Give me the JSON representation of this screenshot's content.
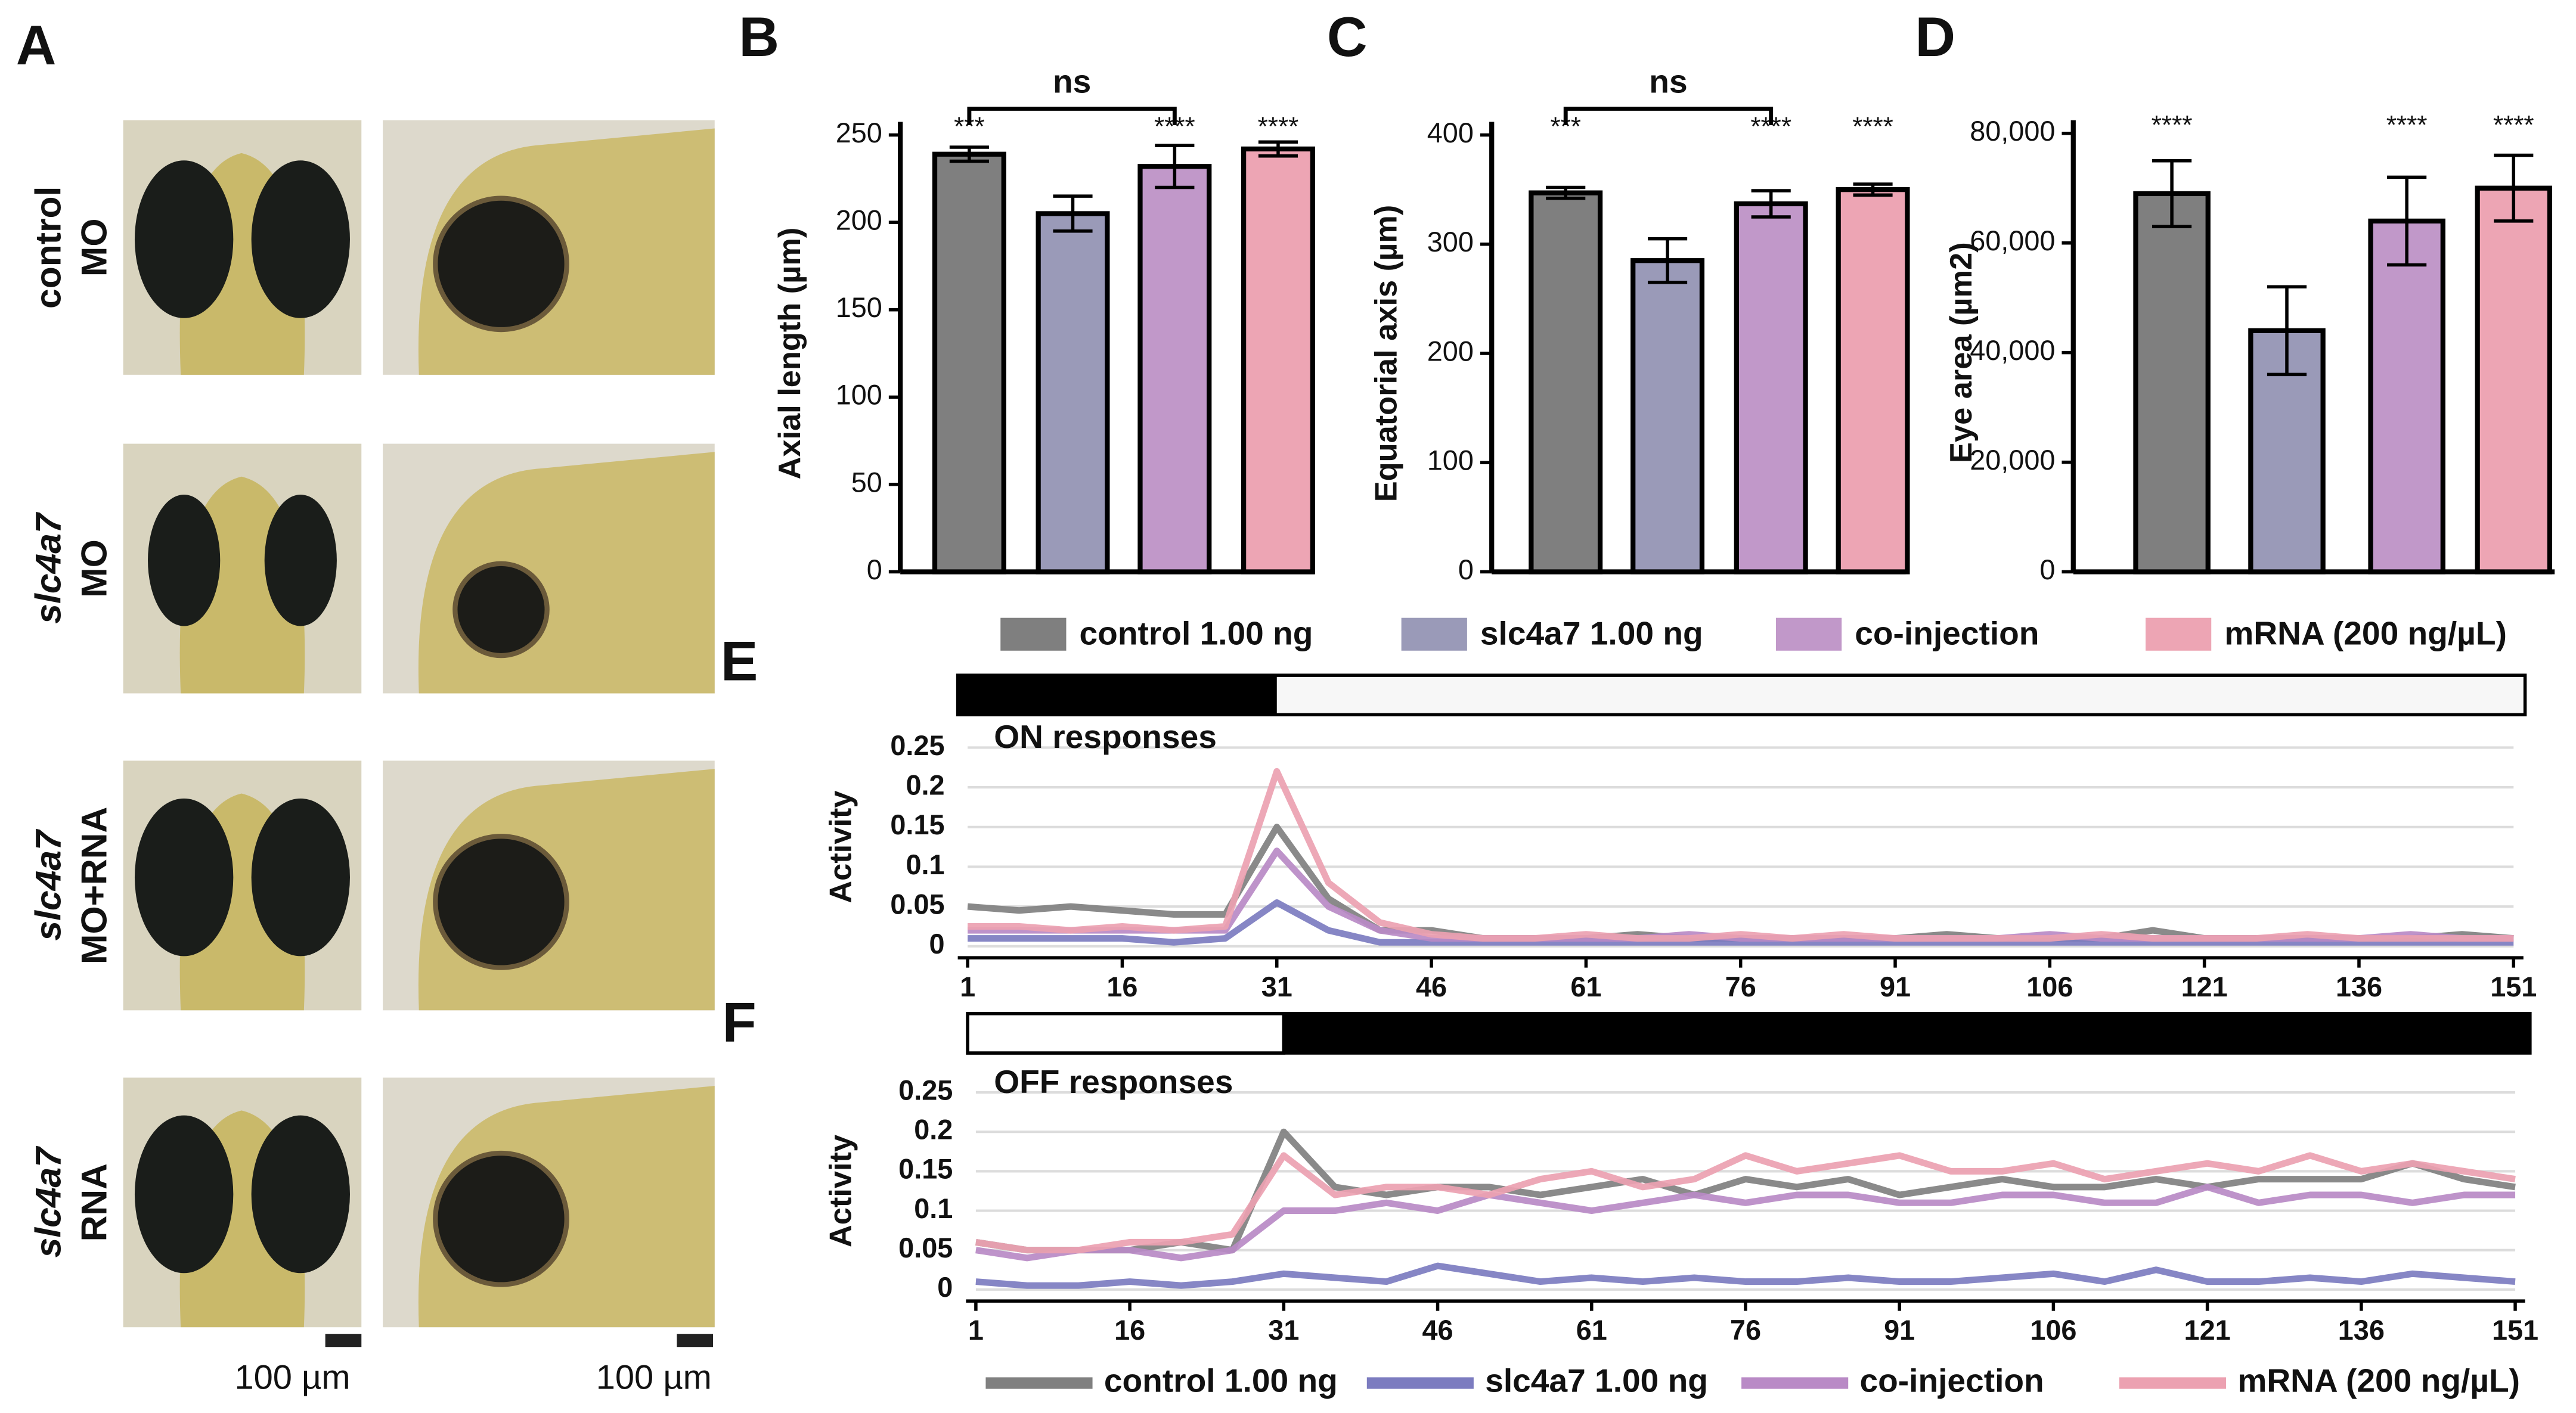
{
  "panel_labels": [
    "A",
    "B",
    "C",
    "D",
    "E",
    "F"
  ],
  "panel_a": {
    "rows": [
      {
        "gene": "control",
        "label": "MO"
      },
      {
        "gene": "slc4a7",
        "label": "MO"
      },
      {
        "gene": "slc4a7",
        "label": "MO+RNA"
      },
      {
        "gene": "slc4a7",
        "label": "RNA"
      }
    ],
    "scale_bar_labels": [
      "100 µm",
      "100 µm"
    ]
  },
  "legend": [
    {
      "name": "control 1.00 ng",
      "color": "#7f7f7f"
    },
    {
      "name": "slc4a7 1.00 ng",
      "color": "#9a9ab8"
    },
    {
      "name": "co-injection",
      "color": "#c198c9"
    },
    {
      "name": "mRNA (200 ng/µL)",
      "color": "#eda5b4"
    }
  ],
  "chart_data": [
    {
      "type": "bar",
      "ylabel": "Axial length (µm)",
      "values": [
        239,
        205,
        232,
        242
      ],
      "errors": [
        4,
        10,
        12,
        4
      ],
      "significance": [
        "***",
        null,
        "****",
        "****"
      ],
      "comparison_label": "ns",
      "ylim": [
        0,
        250
      ],
      "yticks": [
        0,
        50,
        100,
        150,
        200,
        250
      ]
    },
    {
      "type": "bar",
      "ylabel": "Equatorial axis (µm)",
      "values": [
        347,
        285,
        337,
        350
      ],
      "errors": [
        5,
        20,
        12,
        5
      ],
      "significance": [
        "***",
        null,
        "****",
        "****"
      ],
      "comparison_label": "ns",
      "ylim": [
        0,
        400
      ],
      "yticks": [
        0,
        100,
        200,
        300,
        400
      ]
    },
    {
      "type": "bar",
      "ylabel": "Eye area (µm2)",
      "values": [
        69000,
        44000,
        64000,
        70000
      ],
      "errors": [
        6000,
        8000,
        8000,
        6000
      ],
      "significance": [
        "****",
        null,
        "****",
        "****"
      ],
      "ylim": [
        0,
        80000
      ],
      "yticks": [
        0,
        {
          "value": 20000,
          "label": "20,000"
        },
        {
          "value": 40000,
          "label": "40,000"
        },
        {
          "value": 60000,
          "label": "60,000"
        },
        {
          "value": 80000,
          "label": "80,000"
        }
      ]
    },
    {
      "type": "line",
      "title": "ON responses",
      "ylabel": "Activity",
      "x": [
        1,
        6,
        11,
        16,
        21,
        26,
        31,
        36,
        41,
        46,
        51,
        56,
        61,
        66,
        71,
        76,
        81,
        86,
        91,
        96,
        101,
        106,
        111,
        116,
        121,
        126,
        131,
        136,
        141,
        146,
        151
      ],
      "xlim": [
        1,
        151
      ],
      "xticks": [
        1,
        16,
        31,
        46,
        61,
        76,
        91,
        106,
        121,
        136,
        151
      ],
      "ylim": [
        0,
        0.25
      ],
      "yticks": [
        0,
        0.05,
        0.1,
        0.15,
        0.2,
        0.25
      ],
      "grid": true,
      "series": [
        {
          "color": "#808080",
          "values": [
            0.05,
            0.045,
            0.05,
            0.045,
            0.04,
            0.04,
            0.15,
            0.06,
            0.02,
            0.02,
            0.01,
            0.01,
            0.01,
            0.015,
            0.01,
            0.01,
            0.01,
            0.01,
            0.01,
            0.015,
            0.01,
            0.01,
            0.01,
            0.02,
            0.01,
            0.01,
            0.01,
            0.01,
            0.01,
            0.015,
            0.01
          ]
        },
        {
          "color": "#7c7cc0",
          "values": [
            0.01,
            0.01,
            0.01,
            0.01,
            0.005,
            0.01,
            0.055,
            0.02,
            0.005,
            0.005,
            0.005,
            0.005,
            0.005,
            0.005,
            0.005,
            0.005,
            0.005,
            0.005,
            0.005,
            0.005,
            0.005,
            0.005,
            0.005,
            0.005,
            0.005,
            0.005,
            0.005,
            0.005,
            0.005,
            0.005,
            0.005
          ]
        },
        {
          "color": "#b98ac6",
          "values": [
            0.02,
            0.02,
            0.02,
            0.02,
            0.02,
            0.02,
            0.12,
            0.05,
            0.02,
            0.01,
            0.01,
            0.01,
            0.01,
            0.01,
            0.015,
            0.01,
            0.01,
            0.01,
            0.01,
            0.01,
            0.01,
            0.015,
            0.01,
            0.01,
            0.01,
            0.01,
            0.01,
            0.01,
            0.015,
            0.01,
            0.01
          ]
        },
        {
          "color": "#eca1b1",
          "values": [
            0.025,
            0.025,
            0.02,
            0.025,
            0.02,
            0.025,
            0.22,
            0.08,
            0.03,
            0.015,
            0.01,
            0.01,
            0.015,
            0.01,
            0.01,
            0.015,
            0.01,
            0.015,
            0.01,
            0.01,
            0.01,
            0.01,
            0.015,
            0.01,
            0.01,
            0.01,
            0.015,
            0.01,
            0.01,
            0.01,
            0.01
          ]
        }
      ]
    },
    {
      "type": "line",
      "title": "OFF responses",
      "ylabel": "Activity",
      "x": [
        1,
        6,
        11,
        16,
        21,
        26,
        31,
        36,
        41,
        46,
        51,
        56,
        61,
        66,
        71,
        76,
        81,
        86,
        91,
        96,
        101,
        106,
        111,
        116,
        121,
        126,
        131,
        136,
        141,
        146,
        151
      ],
      "xlim": [
        1,
        151
      ],
      "xticks": [
        1,
        16,
        31,
        46,
        61,
        76,
        91,
        106,
        121,
        136,
        151
      ],
      "ylim": [
        0,
        0.25
      ],
      "yticks": [
        0,
        0.05,
        0.1,
        0.15,
        0.2,
        0.25
      ],
      "grid": true,
      "series": [
        {
          "name": "control 1.00 ng",
          "color": "#808080",
          "values": [
            0.06,
            0.05,
            0.05,
            0.05,
            0.06,
            0.05,
            0.2,
            0.13,
            0.12,
            0.13,
            0.13,
            0.12,
            0.13,
            0.14,
            0.12,
            0.14,
            0.13,
            0.14,
            0.12,
            0.13,
            0.14,
            0.13,
            0.13,
            0.14,
            0.13,
            0.14,
            0.14,
            0.14,
            0.16,
            0.14,
            0.13
          ]
        },
        {
          "name": "slc4a7 1.00 ng",
          "color": "#7c7cc0",
          "values": [
            0.01,
            0.005,
            0.005,
            0.01,
            0.005,
            0.01,
            0.02,
            0.015,
            0.01,
            0.03,
            0.02,
            0.01,
            0.015,
            0.01,
            0.015,
            0.01,
            0.01,
            0.015,
            0.01,
            0.01,
            0.015,
            0.02,
            0.01,
            0.025,
            0.01,
            0.01,
            0.015,
            0.01,
            0.02,
            0.015,
            0.01
          ]
        },
        {
          "name": "co-injection",
          "color": "#b98ac6",
          "values": [
            0.05,
            0.04,
            0.05,
            0.05,
            0.04,
            0.05,
            0.1,
            0.1,
            0.11,
            0.1,
            0.12,
            0.11,
            0.1,
            0.11,
            0.12,
            0.11,
            0.12,
            0.12,
            0.11,
            0.11,
            0.12,
            0.12,
            0.11,
            0.11,
            0.13,
            0.11,
            0.12,
            0.12,
            0.11,
            0.12,
            0.12
          ]
        },
        {
          "name": "mRNA (200 ng/µL)",
          "color": "#eca1b1",
          "values": [
            0.06,
            0.05,
            0.05,
            0.06,
            0.06,
            0.07,
            0.17,
            0.12,
            0.13,
            0.13,
            0.12,
            0.14,
            0.15,
            0.13,
            0.14,
            0.17,
            0.15,
            0.16,
            0.17,
            0.15,
            0.15,
            0.16,
            0.14,
            0.15,
            0.16,
            0.15,
            0.17,
            0.15,
            0.16,
            0.15,
            0.14
          ]
        }
      ]
    }
  ]
}
